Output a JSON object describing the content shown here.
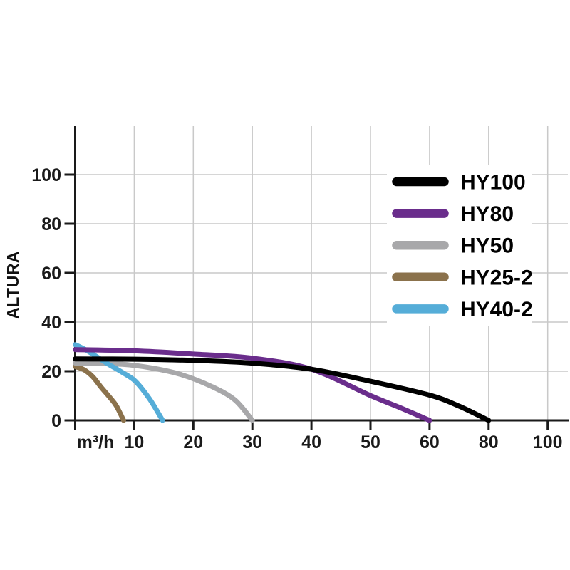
{
  "chart_data": {
    "type": "line",
    "title": "",
    "xlabel": "m³/h",
    "ylabel": "ALTURA",
    "x_tick_labels": [
      "10",
      "20",
      "30",
      "40",
      "50",
      "60",
      "80",
      "100"
    ],
    "x_tick_values": [
      10,
      20,
      30,
      40,
      50,
      60,
      80,
      100
    ],
    "y_tick_labels": [
      "0",
      "20",
      "40",
      "60",
      "80",
      "100"
    ],
    "y_tick_values": [
      0,
      20,
      40,
      60,
      80,
      100
    ],
    "ylim": [
      0,
      120
    ],
    "grid": true,
    "legend_position": "inside-right",
    "series": [
      {
        "name": "HY100",
        "color": "#000000",
        "points": [
          [
            0,
            25
          ],
          [
            10,
            24.9
          ],
          [
            20,
            24.4
          ],
          [
            30,
            23.3
          ],
          [
            40,
            20.8
          ],
          [
            50,
            15.9
          ],
          [
            60,
            10.3
          ],
          [
            70,
            5.8
          ],
          [
            80,
            0
          ]
        ]
      },
      {
        "name": "HY80",
        "color": "#6a2d8c",
        "points": [
          [
            0,
            28.8
          ],
          [
            10,
            28.3
          ],
          [
            20,
            27
          ],
          [
            30,
            25.3
          ],
          [
            40,
            20.8
          ],
          [
            50,
            10.1
          ],
          [
            55,
            5.2
          ],
          [
            60,
            0
          ]
        ]
      },
      {
        "name": "HY50",
        "color": "#a8a8aa",
        "points": [
          [
            0,
            23.3
          ],
          [
            8,
            22.8
          ],
          [
            13,
            21.3
          ],
          [
            18,
            18.6
          ],
          [
            23,
            13.9
          ],
          [
            27,
            8.4
          ],
          [
            30,
            0
          ]
        ]
      },
      {
        "name": "HY25-2",
        "color": "#8b724c",
        "points": [
          [
            0,
            21.9
          ],
          [
            1.5,
            20.6
          ],
          [
            3,
            17.7
          ],
          [
            4.5,
            13.2
          ],
          [
            6,
            9
          ],
          [
            7,
            5.8
          ],
          [
            8.2,
            0
          ]
        ]
      },
      {
        "name": "HY40-2",
        "color": "#55add8",
        "points": [
          [
            0,
            30.8
          ],
          [
            2,
            28.4
          ],
          [
            5.4,
            23.2
          ],
          [
            8,
            19.5
          ],
          [
            10.2,
            15.9
          ],
          [
            12.6,
            8.7
          ],
          [
            14.8,
            0
          ]
        ]
      }
    ]
  },
  "styles": {
    "background": "#ffffff",
    "axis_color": "#1a1a1a",
    "grid_color": "#c9c9c9",
    "text_color": "#1a1a1a",
    "legend_background": "#ffffff"
  }
}
